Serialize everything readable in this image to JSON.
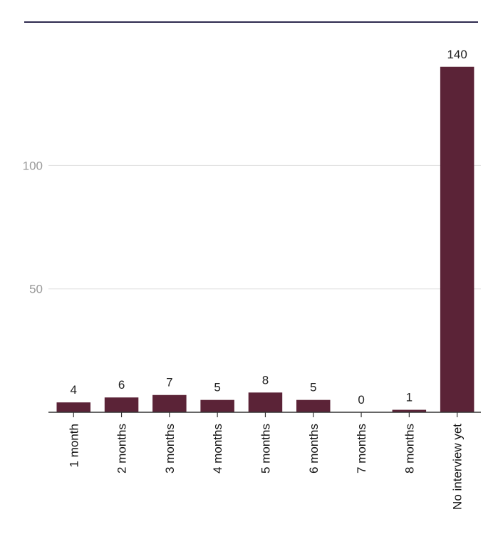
{
  "chart_data": {
    "type": "bar",
    "categories": [
      "1 month",
      "2 months",
      "3 months",
      "4 months",
      "5 months",
      "6 months",
      "7 months",
      "8 months",
      "No interview yet"
    ],
    "values": [
      4,
      6,
      7,
      5,
      8,
      5,
      0,
      1,
      140
    ],
    "data_labels": [
      "4",
      "6",
      "7",
      "5",
      "8",
      "5",
      "0",
      "1",
      "140"
    ],
    "yticks": [
      50,
      100
    ],
    "ytick_labels": [
      "50",
      "100"
    ],
    "ylim": [
      0,
      140
    ],
    "grid": true,
    "colors": {
      "bar": "#5b2337",
      "grid": "#dddddd",
      "axis": "#333333",
      "top_rule": "#2e2a4f"
    }
  }
}
